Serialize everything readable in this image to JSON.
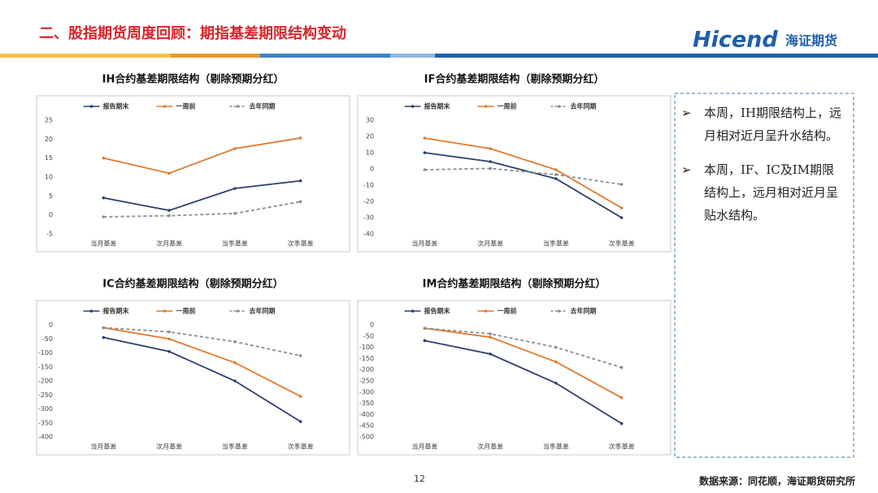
{
  "page": {
    "title": "二、股指期货周度回顾：期指基差期限结构变动",
    "logo": "Hicend",
    "logo_cn": "海证期货",
    "bullets": [
      "本周，IH期限结构上，远月相对近月呈升水结构。",
      "本周，IF、IC及IM期限结构上，远月相对近月呈贴水结构。"
    ],
    "page_number": "12",
    "source": "数据来源：同花顺，海证期货研究所"
  },
  "chart_data": [
    {
      "type": "line",
      "title": "IH合约基差期限结构（剔除预期分红）",
      "categories": [
        "当月基差",
        "次月基差",
        "当季基差",
        "次季基差"
      ],
      "series": [
        {
          "name": "报告期末",
          "color": "#2e3f6e",
          "values": [
            4.5,
            1.2,
            7,
            9
          ]
        },
        {
          "name": "一周前",
          "color": "#e07a30",
          "values": [
            15,
            11,
            17.5,
            20.3
          ]
        },
        {
          "name": "去年同期",
          "color": "#8c8c8c",
          "dashed": true,
          "values": [
            -0.5,
            -0.2,
            0.4,
            3.5
          ]
        }
      ],
      "ylim": [
        -5,
        25
      ],
      "yticks": [
        -5,
        0,
        5,
        10,
        15,
        20,
        25
      ],
      "grid": false,
      "legend": "top"
    },
    {
      "type": "line",
      "title": "IF合约基差期限结构（剔除预期分红）",
      "categories": [
        "当月基差",
        "次月基差",
        "当季基差",
        "次季基差"
      ],
      "series": [
        {
          "name": "报告期末",
          "color": "#2e3f6e",
          "values": [
            10,
            4.5,
            -6,
            -30
          ]
        },
        {
          "name": "一周前",
          "color": "#e07a30",
          "values": [
            19,
            12.5,
            -0.5,
            -24
          ]
        },
        {
          "name": "去年同期",
          "color": "#8c8c8c",
          "dashed": true,
          "values": [
            -0.5,
            0.3,
            -3.5,
            -9.5
          ]
        }
      ],
      "ylim": [
        -40,
        30
      ],
      "yticks": [
        -40,
        -30,
        -20,
        -10,
        0,
        10,
        20,
        30
      ],
      "grid": false,
      "legend": "top"
    },
    {
      "type": "line",
      "title": "IC合约基差期限结构（剔除预期分红）",
      "categories": [
        "当月基差",
        "次月基差",
        "当季基差",
        "次季基差"
      ],
      "series": [
        {
          "name": "报告期末",
          "color": "#2e3f6e",
          "values": [
            -45,
            -95,
            -200,
            -345
          ]
        },
        {
          "name": "一周前",
          "color": "#e07a30",
          "values": [
            -10,
            -50,
            -135,
            -255
          ]
        },
        {
          "name": "去年同期",
          "color": "#8c8c8c",
          "dashed": true,
          "values": [
            -10,
            -25,
            -60,
            -110
          ]
        }
      ],
      "ylim": [
        -400,
        0
      ],
      "yticks": [
        -400,
        -350,
        -300,
        -250,
        -200,
        -150,
        -100,
        -50,
        0
      ],
      "grid": false,
      "legend": "top"
    },
    {
      "type": "line",
      "title": "IM合约基差期限结构（剔除预期分红）",
      "categories": [
        "当月基差",
        "次月基差",
        "当季基差",
        "次季基差"
      ],
      "series": [
        {
          "name": "报告期末",
          "color": "#2e3f6e",
          "values": [
            -70,
            -130,
            -260,
            -440
          ]
        },
        {
          "name": "一周前",
          "color": "#e07a30",
          "values": [
            -15,
            -55,
            -165,
            -325
          ]
        },
        {
          "name": "去年同期",
          "color": "#8c8c8c",
          "dashed": true,
          "values": [
            -15,
            -40,
            -100,
            -190
          ]
        }
      ],
      "ylim": [
        -500,
        0
      ],
      "yticks": [
        -500,
        -450,
        -400,
        -350,
        -300,
        -250,
        -200,
        -150,
        -100,
        -50,
        0
      ],
      "grid": false,
      "legend": "top"
    }
  ]
}
